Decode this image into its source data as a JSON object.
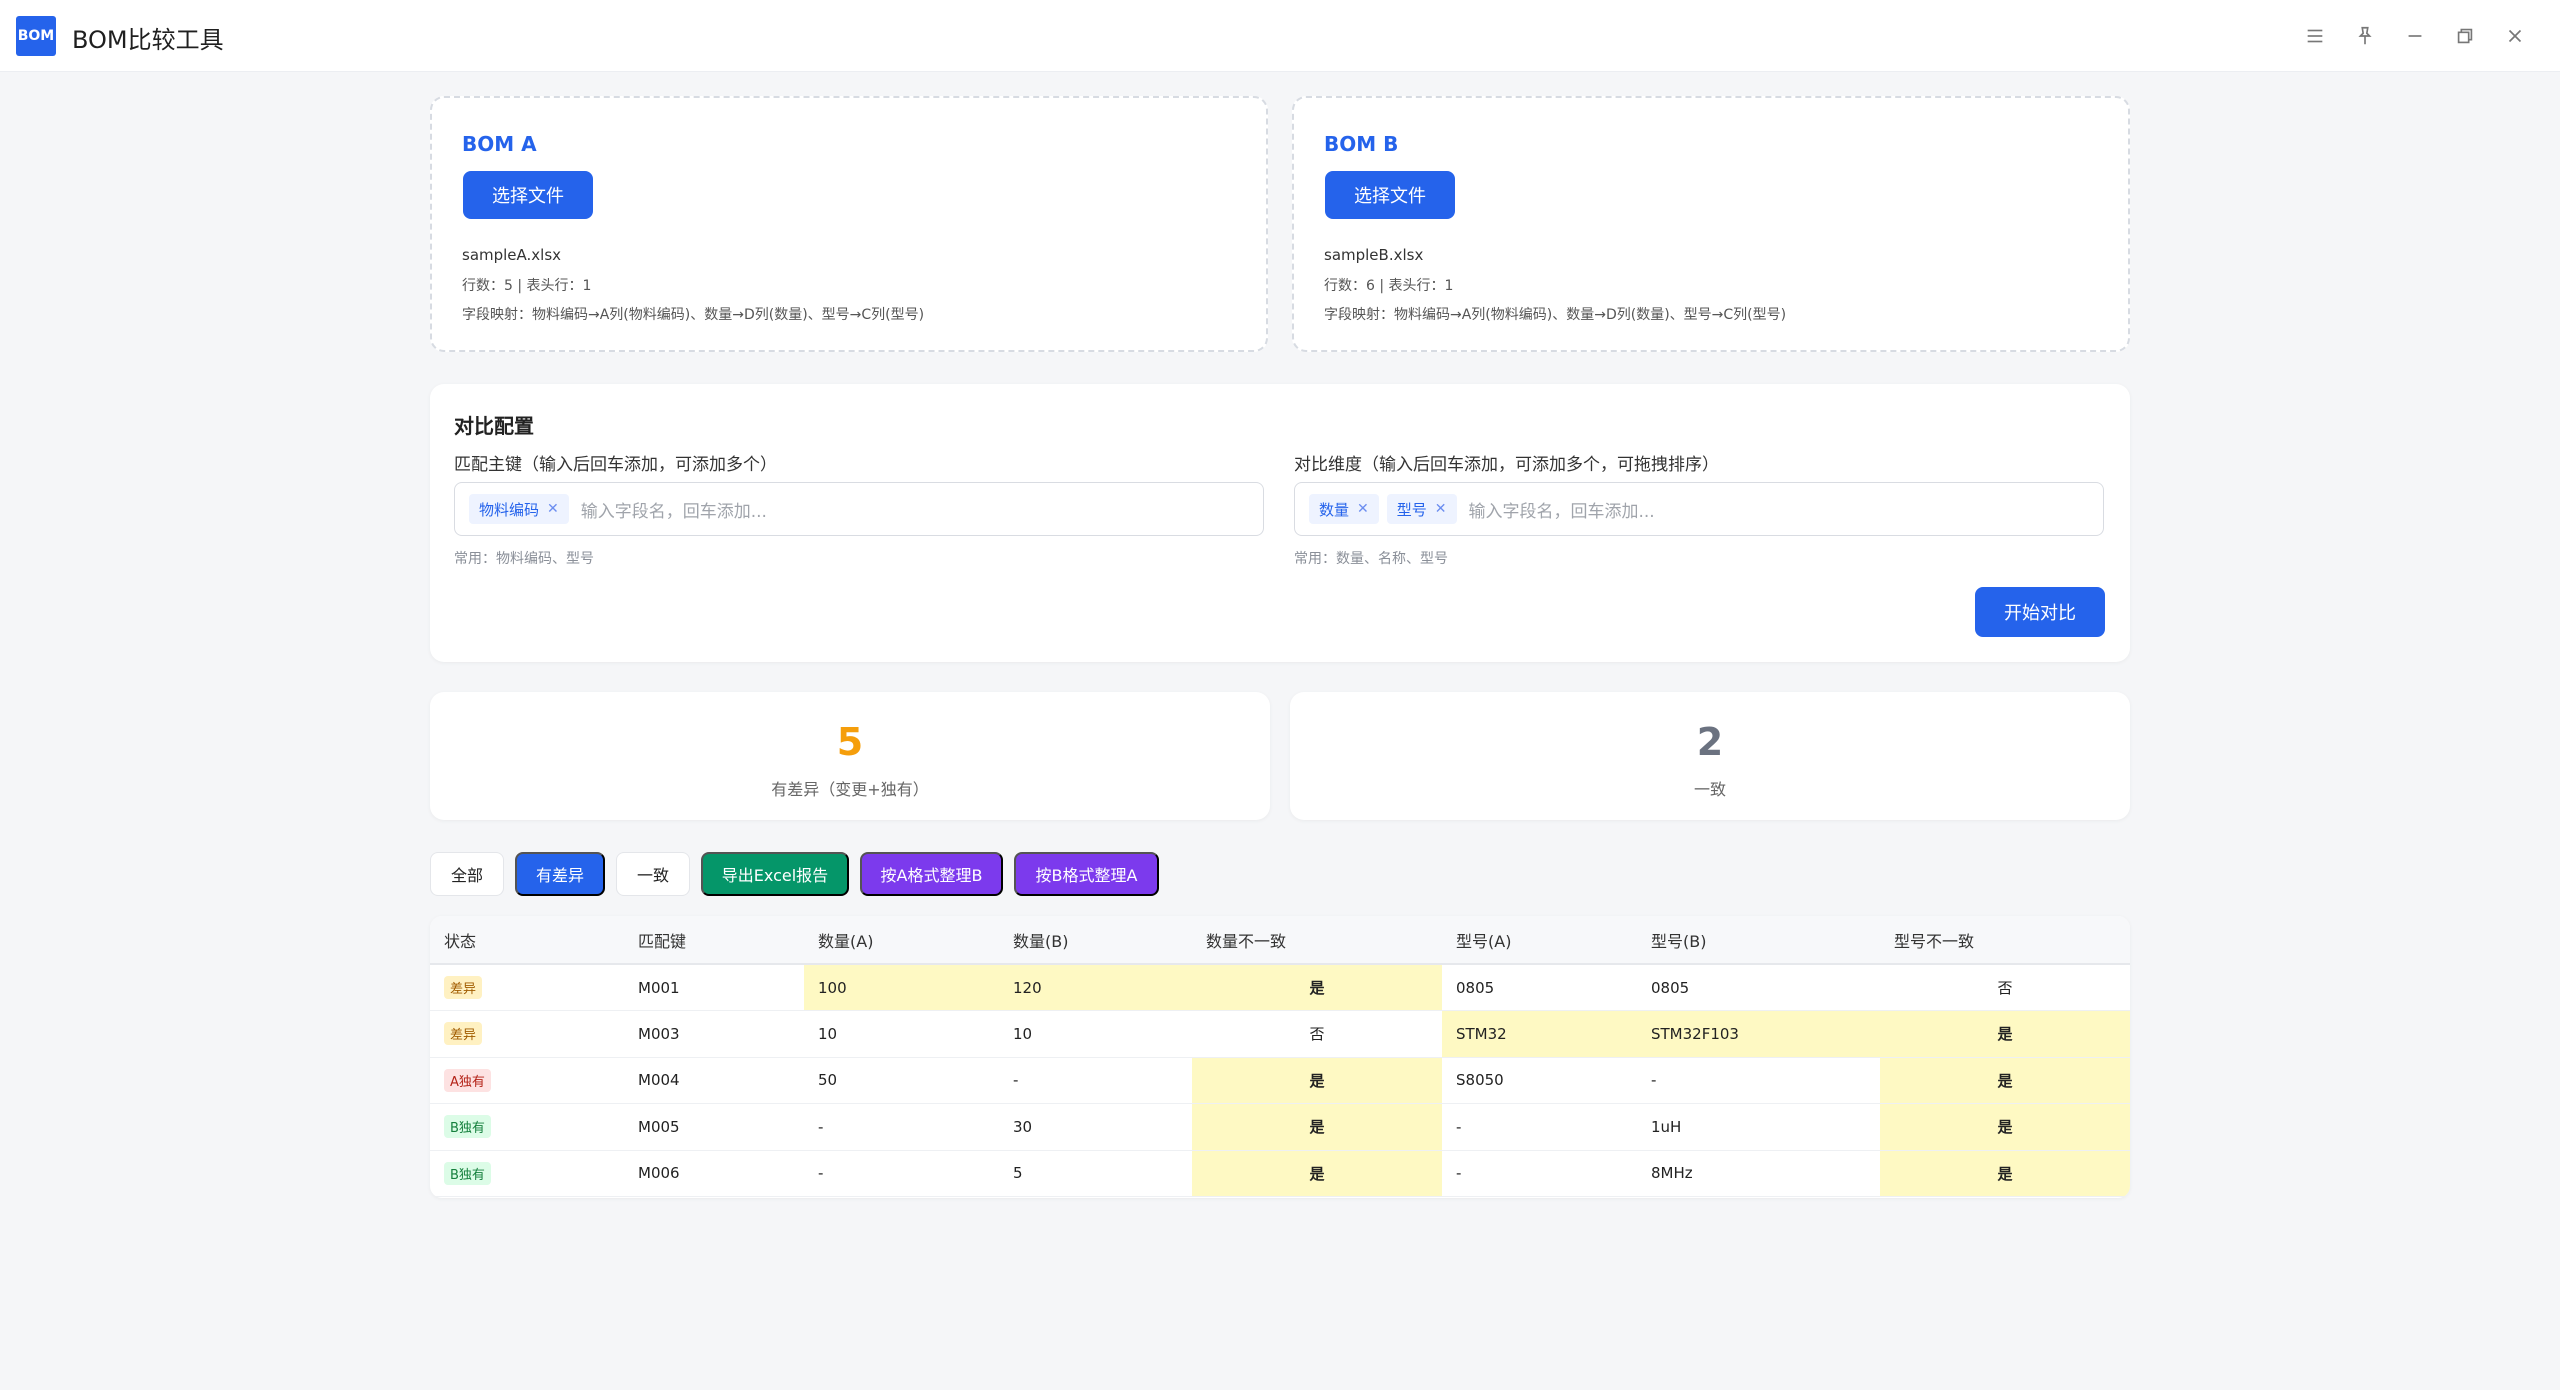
{
  "app": {
    "logo_text": "BOM",
    "title": "BOM比较工具"
  },
  "bom_a": {
    "title": "BOM A",
    "select_label": "选择文件",
    "file_name": "sampleA.xlsx",
    "info": "行数：5 | 表头行：1",
    "mapping": "字段映射：物料编码→A列(物料编码)、数量→D列(数量)、型号→C列(型号)"
  },
  "bom_b": {
    "title": "BOM B",
    "select_label": "选择文件",
    "file_name": "sampleB.xlsx",
    "info": "行数：6 | 表头行：1",
    "mapping": "字段映射：物料编码→A列(物料编码)、数量→D列(数量)、型号→C列(型号)"
  },
  "config": {
    "title": "对比配置",
    "keys_label": "匹配主键（输入后回车添加，可添加多个）",
    "keys_tags": [
      "物料编码"
    ],
    "keys_placeholder": "输入字段名，回车添加...",
    "keys_hint": "常用：物料编码、型号",
    "dims_label": "对比维度（输入后回车添加，可添加多个，可拖拽排序）",
    "dims_tags": [
      "数量",
      "型号"
    ],
    "dims_placeholder": "输入字段名，回车添加...",
    "dims_hint": "常用：数量、名称、型号",
    "start_label": "开始对比"
  },
  "stats": {
    "diff_count": "5",
    "diff_label": "有差异（变更+独有）",
    "same_count": "2",
    "same_label": "一致",
    "diff_color": "#f59e0b",
    "same_color": "#6b7280"
  },
  "filters": {
    "all": "全部",
    "diff": "有差异",
    "same": "一致",
    "export": "导出Excel报告",
    "by_a": "按A格式整理B",
    "by_b": "按B格式整理A"
  },
  "table": {
    "headers": [
      "状态",
      "匹配键",
      "数量(A)",
      "数量(B)",
      "数量不一致",
      "型号(A)",
      "型号(B)",
      "型号不一致"
    ],
    "rows": [
      {
        "status": "差异",
        "key": "M001",
        "qa": "100",
        "qb": "120",
        "qdiff": "是",
        "ma": "0805",
        "mb": "0805",
        "mdiff": "否"
      },
      {
        "status": "差异",
        "key": "M003",
        "qa": "10",
        "qb": "10",
        "qdiff": "否",
        "ma": "STM32",
        "mb": "STM32F103",
        "mdiff": "是"
      },
      {
        "status": "A独有",
        "key": "M004",
        "qa": "50",
        "qb": "-",
        "qdiff": "是",
        "ma": "S8050",
        "mb": "-",
        "mdiff": "是"
      },
      {
        "status": "B独有",
        "key": "M005",
        "qa": "-",
        "qb": "30",
        "qdiff": "是",
        "ma": "-",
        "mb": "1uH",
        "mdiff": "是"
      },
      {
        "status": "B独有",
        "key": "M006",
        "qa": "-",
        "qb": "5",
        "qdiff": "是",
        "ma": "-",
        "mb": "8MHz",
        "mdiff": "是"
      }
    ]
  }
}
